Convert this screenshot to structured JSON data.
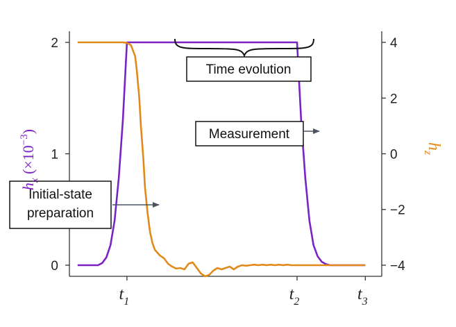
{
  "chart_data": {
    "type": "line",
    "title": "",
    "left_axis": {
      "label_main": "h",
      "label_sub": "x",
      "label_unit": " (×10",
      "label_exp": "−3",
      "label_close": ")",
      "ylim": [
        -0.1,
        2.1
      ],
      "ticks": [
        0,
        1,
        2
      ],
      "tick_labels": [
        "0",
        "1",
        "2"
      ]
    },
    "right_axis": {
      "label": "hz",
      "label_main": "h",
      "label_sub": "z",
      "ylim": [
        -4.4,
        4.4
      ],
      "ticks": [
        4,
        2,
        0,
        -2,
        -4
      ],
      "tick_labels": [
        "4",
        "2",
        "0",
        "−2",
        "−4"
      ]
    },
    "x_axis": {
      "xlim": [
        -0.7,
        3.1
      ],
      "ticks": [
        0,
        2.07,
        2.9
      ],
      "tick_main": [
        "t",
        "t",
        "t"
      ],
      "tick_sub": [
        "1",
        "2",
        "3"
      ]
    },
    "series": [
      {
        "name": "hx",
        "axis": "left",
        "color": "#7b22c4",
        "x": [
          -0.6,
          -0.35,
          -0.3,
          -0.25,
          -0.2,
          -0.15,
          -0.1,
          -0.05,
          0,
          2.07,
          2.12,
          2.17,
          2.22,
          2.27,
          2.32,
          2.37,
          2.42,
          2.47,
          2.52,
          2.6,
          2.9
        ],
        "y": [
          0,
          0,
          0.02,
          0.07,
          0.18,
          0.4,
          0.78,
          1.3,
          2.0,
          2.0,
          1.3,
          0.78,
          0.4,
          0.18,
          0.08,
          0.03,
          0.01,
          0.0,
          0,
          0,
          0
        ]
      },
      {
        "name": "hz",
        "axis": "right",
        "color": "#e08a1c",
        "x": [
          -0.6,
          -0.05,
          0.0,
          0.05,
          0.1,
          0.12,
          0.15,
          0.17,
          0.2,
          0.22,
          0.25,
          0.28,
          0.31,
          0.34,
          0.37,
          0.4,
          0.45,
          0.5,
          0.55,
          0.6,
          0.65,
          0.7,
          0.75,
          0.8,
          0.85,
          0.9,
          0.95,
          1.0,
          1.05,
          1.1,
          1.15,
          1.2,
          1.25,
          1.3,
          1.35,
          1.4,
          1.45,
          1.5,
          1.55,
          1.6,
          1.65,
          1.7,
          1.75,
          1.8,
          1.85,
          1.9,
          1.95,
          2.0,
          2.05,
          2.1,
          2.2,
          2.4,
          2.6,
          2.9
        ],
        "y": [
          4.0,
          4.0,
          3.98,
          3.9,
          3.5,
          3.0,
          2.0,
          1.0,
          -0.2,
          -1.2,
          -2.1,
          -2.8,
          -3.2,
          -3.45,
          -3.55,
          -3.65,
          -3.75,
          -3.95,
          -4.05,
          -4.12,
          -4.1,
          -4.15,
          -3.95,
          -3.9,
          -4.1,
          -4.3,
          -4.4,
          -4.35,
          -4.2,
          -4.1,
          -4.15,
          -4.1,
          -4.05,
          -4.15,
          -4.05,
          -4.0,
          -4.02,
          -4.0,
          -3.98,
          -4.0,
          -3.98,
          -4.0,
          -3.98,
          -4.0,
          -3.98,
          -4.0,
          -3.98,
          -4.0,
          -4.0,
          -4.0,
          -4.0,
          -4.0,
          -4.0,
          -4.0
        ]
      }
    ],
    "annotations": [
      {
        "id": "initial",
        "lines": [
          "Initial-state",
          "preparation"
        ]
      },
      {
        "id": "time",
        "lines": [
          "Time evolution"
        ]
      },
      {
        "id": "meas",
        "lines": [
          "Measurement"
        ]
      }
    ]
  }
}
